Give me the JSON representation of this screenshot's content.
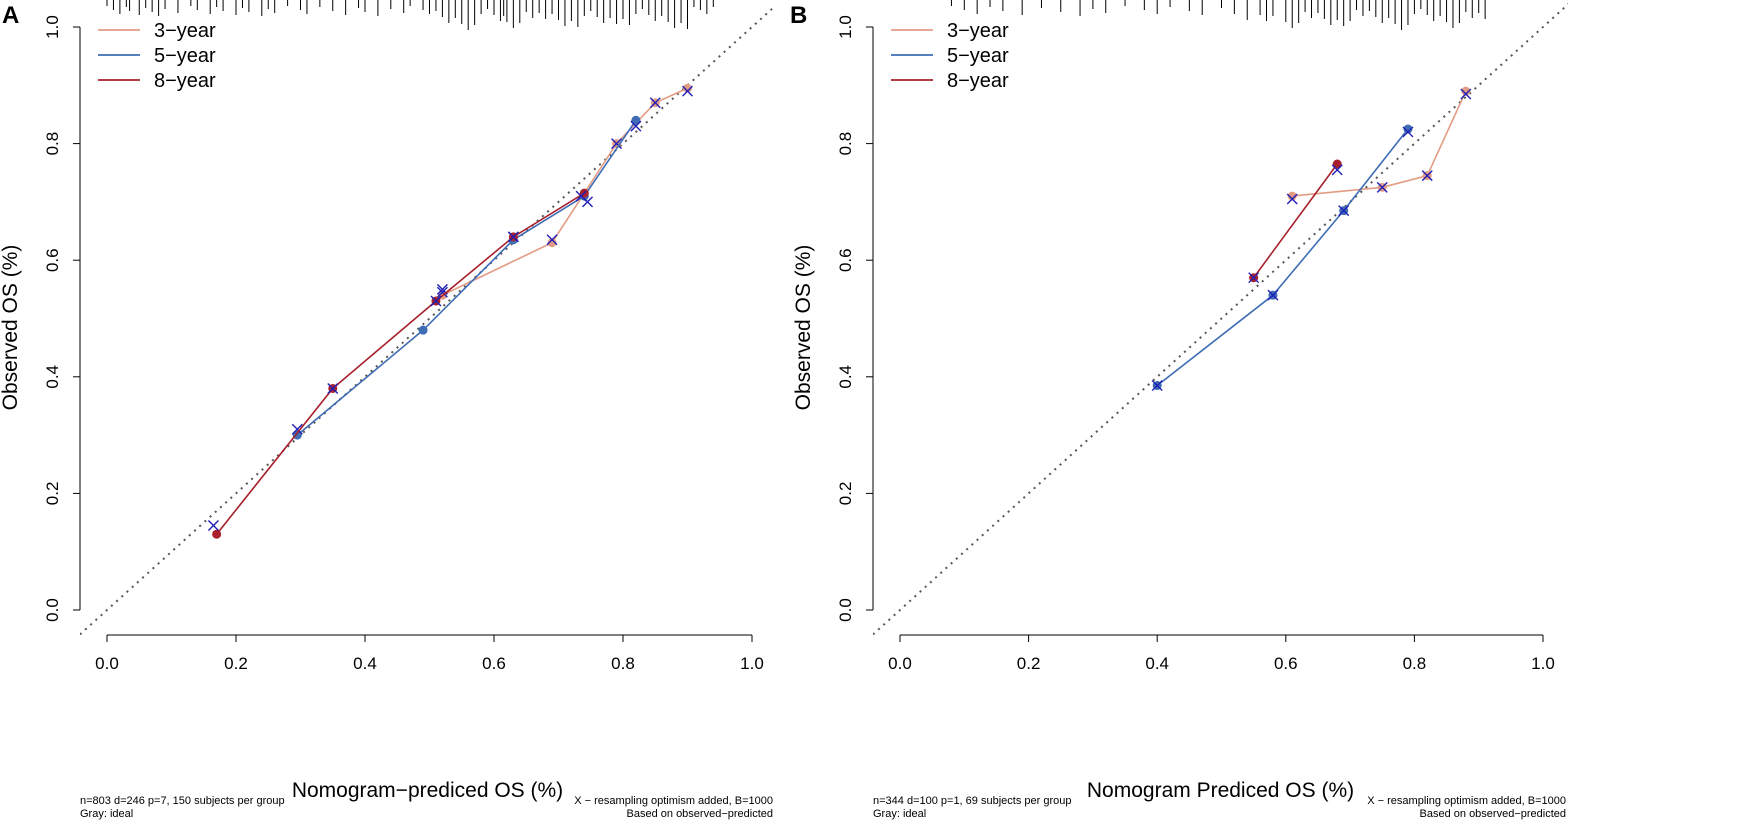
{
  "chart_data": [
    {
      "type": "line",
      "panel": "A",
      "xlabel": "Nomogram−prediced OS (%)",
      "ylabel": "Observed OS (%)",
      "xlim": [
        -0.04,
        1.04
      ],
      "ylim": [
        -0.04,
        1.04
      ],
      "x_ticks": [
        0.0,
        0.2,
        0.4,
        0.6,
        0.8,
        1.0
      ],
      "y_ticks": [
        0.0,
        0.2,
        0.4,
        0.6,
        0.8,
        1.0
      ],
      "x_tick_labels": [
        "0.0",
        "0.2",
        "0.4",
        "0.6",
        "0.8",
        "1.0"
      ],
      "y_tick_labels": [
        "0.0",
        "0.2",
        "0.4",
        "0.6",
        "0.8",
        "1.0"
      ],
      "ideal_line": true,
      "legend_position": "top-left",
      "series": [
        {
          "name": "3−year",
          "color": "#E39C84",
          "x": [
            0.52,
            0.69,
            0.79,
            0.85,
            0.9
          ],
          "y": [
            0.54,
            0.63,
            0.8,
            0.87,
            0.895
          ],
          "x_corrected": [
            0.52,
            0.69,
            0.79,
            0.85,
            0.9
          ],
          "y_corrected": [
            0.545,
            0.635,
            0.8,
            0.87,
            0.89
          ]
        },
        {
          "name": "5−year",
          "color": "#3E6DB5",
          "x": [
            0.295,
            0.49,
            0.63,
            0.74,
            0.82
          ],
          "y": [
            0.3,
            0.48,
            0.635,
            0.71,
            0.84
          ],
          "x_corrected": [
            0.295,
            0.52,
            0.63,
            0.745,
            0.82
          ],
          "y_corrected": [
            0.31,
            0.55,
            0.64,
            0.7,
            0.83
          ]
        },
        {
          "name": "8−year",
          "color": "#A8202C",
          "x": [
            0.17,
            0.35,
            0.51,
            0.63,
            0.74
          ],
          "y": [
            0.13,
            0.38,
            0.53,
            0.64,
            0.715
          ],
          "x_corrected": [
            0.165,
            0.35,
            0.51,
            0.63,
            0.735
          ],
          "y_corrected": [
            0.145,
            0.38,
            0.53,
            0.64,
            0.71
          ]
        }
      ],
      "rug": [
        0.0,
        0.01,
        0.02,
        0.03,
        0.035,
        0.05,
        0.06,
        0.07,
        0.08,
        0.09,
        0.11,
        0.13,
        0.14,
        0.16,
        0.17,
        0.18,
        0.2,
        0.21,
        0.22,
        0.24,
        0.25,
        0.26,
        0.28,
        0.3,
        0.31,
        0.33,
        0.35,
        0.37,
        0.39,
        0.4,
        0.42,
        0.44,
        0.46,
        0.47,
        0.49,
        0.5,
        0.51,
        0.52,
        0.53,
        0.54,
        0.55,
        0.56,
        0.57,
        0.58,
        0.59,
        0.6,
        0.61,
        0.615,
        0.62,
        0.63,
        0.64,
        0.65,
        0.66,
        0.67,
        0.68,
        0.69,
        0.7,
        0.71,
        0.72,
        0.73,
        0.74,
        0.75,
        0.76,
        0.77,
        0.78,
        0.79,
        0.8,
        0.81,
        0.82,
        0.83,
        0.84,
        0.85,
        0.86,
        0.87,
        0.88,
        0.89,
        0.9,
        0.91,
        0.92,
        0.93,
        0.94
      ],
      "note_left": [
        "n=803 d=246 p=7, 150 subjects per group",
        "Gray: ideal"
      ],
      "note_right": [
        "X − resampling optimism added, B=1000",
        "Based on observed−predicted"
      ]
    },
    {
      "type": "line",
      "panel": "B",
      "xlabel": "Nomogram Prediced OS (%)",
      "ylabel": "Observed OS (%)",
      "xlim": [
        -0.04,
        1.04
      ],
      "ylim": [
        -0.04,
        1.04
      ],
      "x_ticks": [
        0.0,
        0.2,
        0.4,
        0.6,
        0.8,
        1.0
      ],
      "y_ticks": [
        0.0,
        0.2,
        0.4,
        0.6,
        0.8,
        1.0
      ],
      "x_tick_labels": [
        "0.0",
        "0.2",
        "0.4",
        "0.6",
        "0.8",
        "1.0"
      ],
      "y_tick_labels": [
        "0.0",
        "0.2",
        "0.4",
        "0.6",
        "0.8",
        "1.0"
      ],
      "ideal_line": true,
      "legend_position": "top-left",
      "series": [
        {
          "name": "3−year",
          "color": "#E39C84",
          "x": [
            0.61,
            0.75,
            0.82,
            0.88
          ],
          "y": [
            0.71,
            0.725,
            0.745,
            0.89
          ],
          "x_corrected": [
            0.61,
            0.75,
            0.82,
            0.88
          ],
          "y_corrected": [
            0.705,
            0.725,
            0.745,
            0.885
          ]
        },
        {
          "name": "5−year",
          "color": "#3E6DB5",
          "x": [
            0.4,
            0.58,
            0.69,
            0.79
          ],
          "y": [
            0.385,
            0.54,
            0.685,
            0.825
          ],
          "x_corrected": [
            0.4,
            0.58,
            0.69,
            0.79
          ],
          "y_corrected": [
            0.385,
            0.54,
            0.685,
            0.82
          ]
        },
        {
          "name": "8−year",
          "color": "#A8202C",
          "x": [
            0.55,
            0.68
          ],
          "y": [
            0.57,
            0.765
          ],
          "x_corrected": [
            0.55,
            0.68
          ],
          "y_corrected": [
            0.57,
            0.755
          ]
        }
      ],
      "rug": [
        0.08,
        0.1,
        0.12,
        0.14,
        0.16,
        0.19,
        0.22,
        0.25,
        0.28,
        0.3,
        0.32,
        0.35,
        0.38,
        0.4,
        0.42,
        0.45,
        0.47,
        0.5,
        0.52,
        0.54,
        0.56,
        0.57,
        0.58,
        0.6,
        0.61,
        0.62,
        0.63,
        0.64,
        0.65,
        0.66,
        0.67,
        0.68,
        0.69,
        0.7,
        0.71,
        0.72,
        0.73,
        0.74,
        0.75,
        0.76,
        0.77,
        0.78,
        0.79,
        0.8,
        0.81,
        0.82,
        0.83,
        0.84,
        0.85,
        0.86,
        0.87,
        0.88,
        0.89,
        0.9,
        0.91
      ],
      "note_left": [
        "n=344 d=100 p=1, 69 subjects per group",
        "Gray: ideal"
      ],
      "note_right": [
        "X − resampling optimism added, B=1000",
        "Based on observed−predicted"
      ]
    }
  ]
}
